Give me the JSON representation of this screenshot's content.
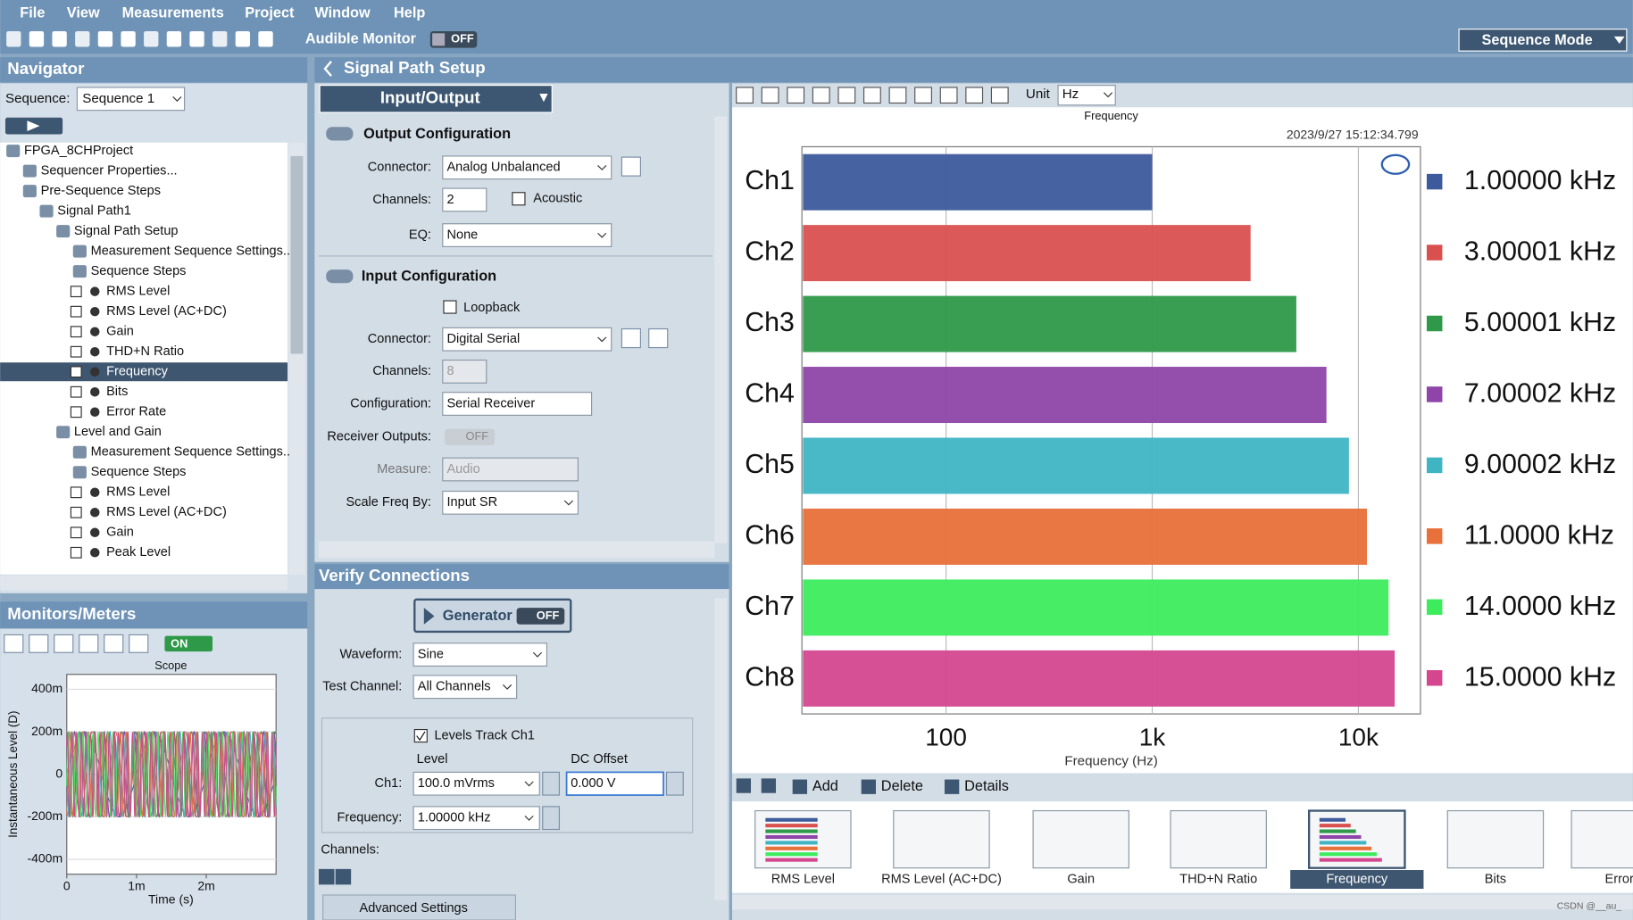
{
  "menu": [
    "File",
    "View",
    "Measurements",
    "Project",
    "Window",
    "Help"
  ],
  "toolbar": {
    "audible_monitor": "Audible Monitor",
    "toggle": "OFF",
    "mode": "Sequence Mode"
  },
  "navigator": {
    "title": "Navigator",
    "sequence_label": "Sequence:",
    "sequence": "Sequence 1",
    "tree": [
      {
        "label": "FPGA_8CHProject",
        "depth": 0
      },
      {
        "label": "Sequencer Properties...",
        "depth": 1
      },
      {
        "label": "Pre-Sequence Steps",
        "depth": 1
      },
      {
        "label": "Signal Path1",
        "depth": 2
      },
      {
        "label": "Signal Path Setup",
        "depth": 3
      },
      {
        "label": "Measurement Sequence Settings..",
        "depth": 4
      },
      {
        "label": "Sequence Steps",
        "depth": 4
      },
      {
        "label": "RMS Level",
        "depth": 5
      },
      {
        "label": "RMS Level (AC+DC)",
        "depth": 5
      },
      {
        "label": "Gain",
        "depth": 5
      },
      {
        "label": "THD+N Ratio",
        "depth": 5
      },
      {
        "label": "Frequency",
        "depth": 5,
        "selected": true
      },
      {
        "label": "Bits",
        "depth": 5
      },
      {
        "label": "Error Rate",
        "depth": 5
      },
      {
        "label": "Level and Gain",
        "depth": 3
      },
      {
        "label": "Measurement Sequence Settings..",
        "depth": 4
      },
      {
        "label": "Sequence Steps",
        "depth": 4
      },
      {
        "label": "RMS Level",
        "depth": 5
      },
      {
        "label": "RMS Level (AC+DC)",
        "depth": 5
      },
      {
        "label": "Gain",
        "depth": 5
      },
      {
        "label": "Peak Level",
        "depth": 5
      }
    ]
  },
  "monitors": {
    "title": "Monitors/Meters",
    "toggle": "ON",
    "scope": {
      "type": "line",
      "title": "Scope",
      "ylabel": "Instantaneous Level (D)",
      "xlabel": "Time (s)",
      "xlim": [
        0,
        0.003
      ],
      "xticks": [
        0,
        {
          "value": 0.001,
          "label": "1m"
        },
        {
          "value": 0.002,
          "label": "2m"
        }
      ],
      "ylim": [
        -0.47,
        0.47
      ],
      "yticks": [
        {
          "value": 0.4,
          "label": "400m"
        },
        {
          "value": 0.2,
          "label": "200m"
        },
        0,
        {
          "value": -0.2,
          "label": "-200m"
        },
        {
          "value": -0.4,
          "label": "-400m"
        }
      ],
      "amplitude": 0.2
    }
  },
  "signal_path": {
    "title": "Signal Path Setup",
    "tab": "Input/Output",
    "output": {
      "title": "Output Configuration",
      "connector_label": "Connector:",
      "connector": "Analog Unbalanced",
      "channels_label": "Channels:",
      "channels": 2,
      "acoustic": "Acoustic",
      "eq_label": "EQ:",
      "eq": "None"
    },
    "input": {
      "title": "Input Configuration",
      "loopback": "Loopback",
      "connector_label": "Connector:",
      "connector": "Digital Serial",
      "channels_label": "Channels:",
      "channels": 8,
      "configuration_label": "Configuration:",
      "configuration": "Serial Receiver",
      "receiver_label": "Receiver Outputs:",
      "receiver": "OFF",
      "measure_label": "Measure:",
      "measure": "Audio",
      "scale_label": "Scale Freq By:",
      "scale": "Input SR"
    }
  },
  "verify": {
    "title": "Verify Connections",
    "generator": "Generator",
    "generator_toggle": "OFF",
    "waveform_label": "Waveform:",
    "waveform": "Sine",
    "test_label": "Test Channel:",
    "test": "All Channels",
    "levels_track": "Levels Track Ch1",
    "level_label": "Level",
    "dc_label": "DC Offset",
    "ch1_label": "Ch1:",
    "level": "100.0 mVrms",
    "dc": "0.000 V",
    "frequency_label": "Frequency:",
    "frequency": "1.00000 kHz",
    "channels_label": "Channels:",
    "advanced": "Advanced Settings"
  },
  "graph_toolbar": {
    "unit_label": "Unit",
    "unit": "Hz"
  },
  "frequency_chart": {
    "type": "bar",
    "orientation": "horizontal",
    "title": "Frequency",
    "timestamp": "2023/9/27 15:12:34.799",
    "categories": [
      "Ch1",
      "Ch2",
      "Ch3",
      "Ch4",
      "Ch5",
      "Ch6",
      "Ch7",
      "Ch8"
    ],
    "values": [
      1000,
      3000.01,
      5000.01,
      7000.02,
      9000.02,
      11000.0,
      14000.0,
      15000.0
    ],
    "value_labels": [
      "1.00000 kHz",
      "3.00001 kHz",
      "5.00001 kHz",
      "7.00002 kHz",
      "9.00002 kHz",
      "11.0000 kHz",
      "14.0000 kHz",
      "15.0000 kHz"
    ],
    "colors": [
      "#3d5a9c",
      "#d9504f",
      "#2e9948",
      "#8e44a8",
      "#3fb5c4",
      "#e8703a",
      "#3cec5d",
      "#d4478f"
    ],
    "xscale": "log",
    "xlim": [
      20,
      20000
    ],
    "xticks": [
      100,
      {
        "value": 1000,
        "label": "1k"
      },
      {
        "value": 10000,
        "label": "10k"
      }
    ],
    "xlabel": "Frequency (Hz)",
    "grid": true
  },
  "steps": {
    "add": "Add",
    "delete": "Delete",
    "details": "Details",
    "thumbnails": [
      "RMS Level",
      "RMS Level (AC+DC)",
      "Gain",
      "THD+N Ratio",
      "Frequency",
      "Bits",
      "Error"
    ],
    "selected": "Frequency"
  },
  "watermark": "CSDN @__au_"
}
